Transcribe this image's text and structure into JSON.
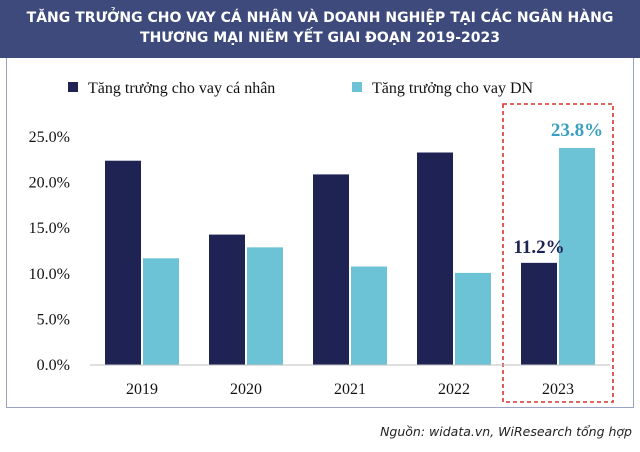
{
  "header": {
    "line1": "TĂNG TRƯỞNG CHO VAY CÁ NHÂN VÀ DOANH NGHIỆP TẠI CÁC NGÂN HÀNG",
    "line2": "THƯƠNG MẠI NIÊM YẾT GIAI ĐOẠN 2019-2023"
  },
  "source": "Nguồn: widata.vn, WiResearch tổng hợp",
  "colors": {
    "header_bg": "#3d4a7b",
    "series_personal": "#1f2354",
    "series_business": "#6cc3d6",
    "highlight_box": "#d9342b"
  },
  "chart_data": {
    "type": "bar",
    "title": "TĂNG TRƯỞNG CHO VAY CÁ NHÂN VÀ DOANH NGHIỆP TẠI CÁC NGÂN HÀNG THƯƠNG MẠI NIÊM YẾT GIAI ĐOẠN 2019-2023",
    "categories": [
      "2019",
      "2020",
      "2021",
      "2022",
      "2023"
    ],
    "series": [
      {
        "name": "Tăng trưởng cho vay cá nhân",
        "values": [
          22.4,
          14.3,
          20.9,
          23.3,
          11.2
        ]
      },
      {
        "name": "Tăng trưởng cho vay DN",
        "values": [
          11.7,
          12.9,
          10.8,
          10.1,
          23.8
        ]
      }
    ],
    "ylim": [
      0,
      25
    ],
    "yticks": [
      "0.0%",
      "5.0%",
      "10.0%",
      "15.0%",
      "20.0%",
      "25.0%"
    ],
    "grid": false,
    "legend_position": "top",
    "data_labels": {
      "personal_2023": "11.2%",
      "business_2023": "23.8%"
    },
    "highlighted_category": "2023"
  }
}
